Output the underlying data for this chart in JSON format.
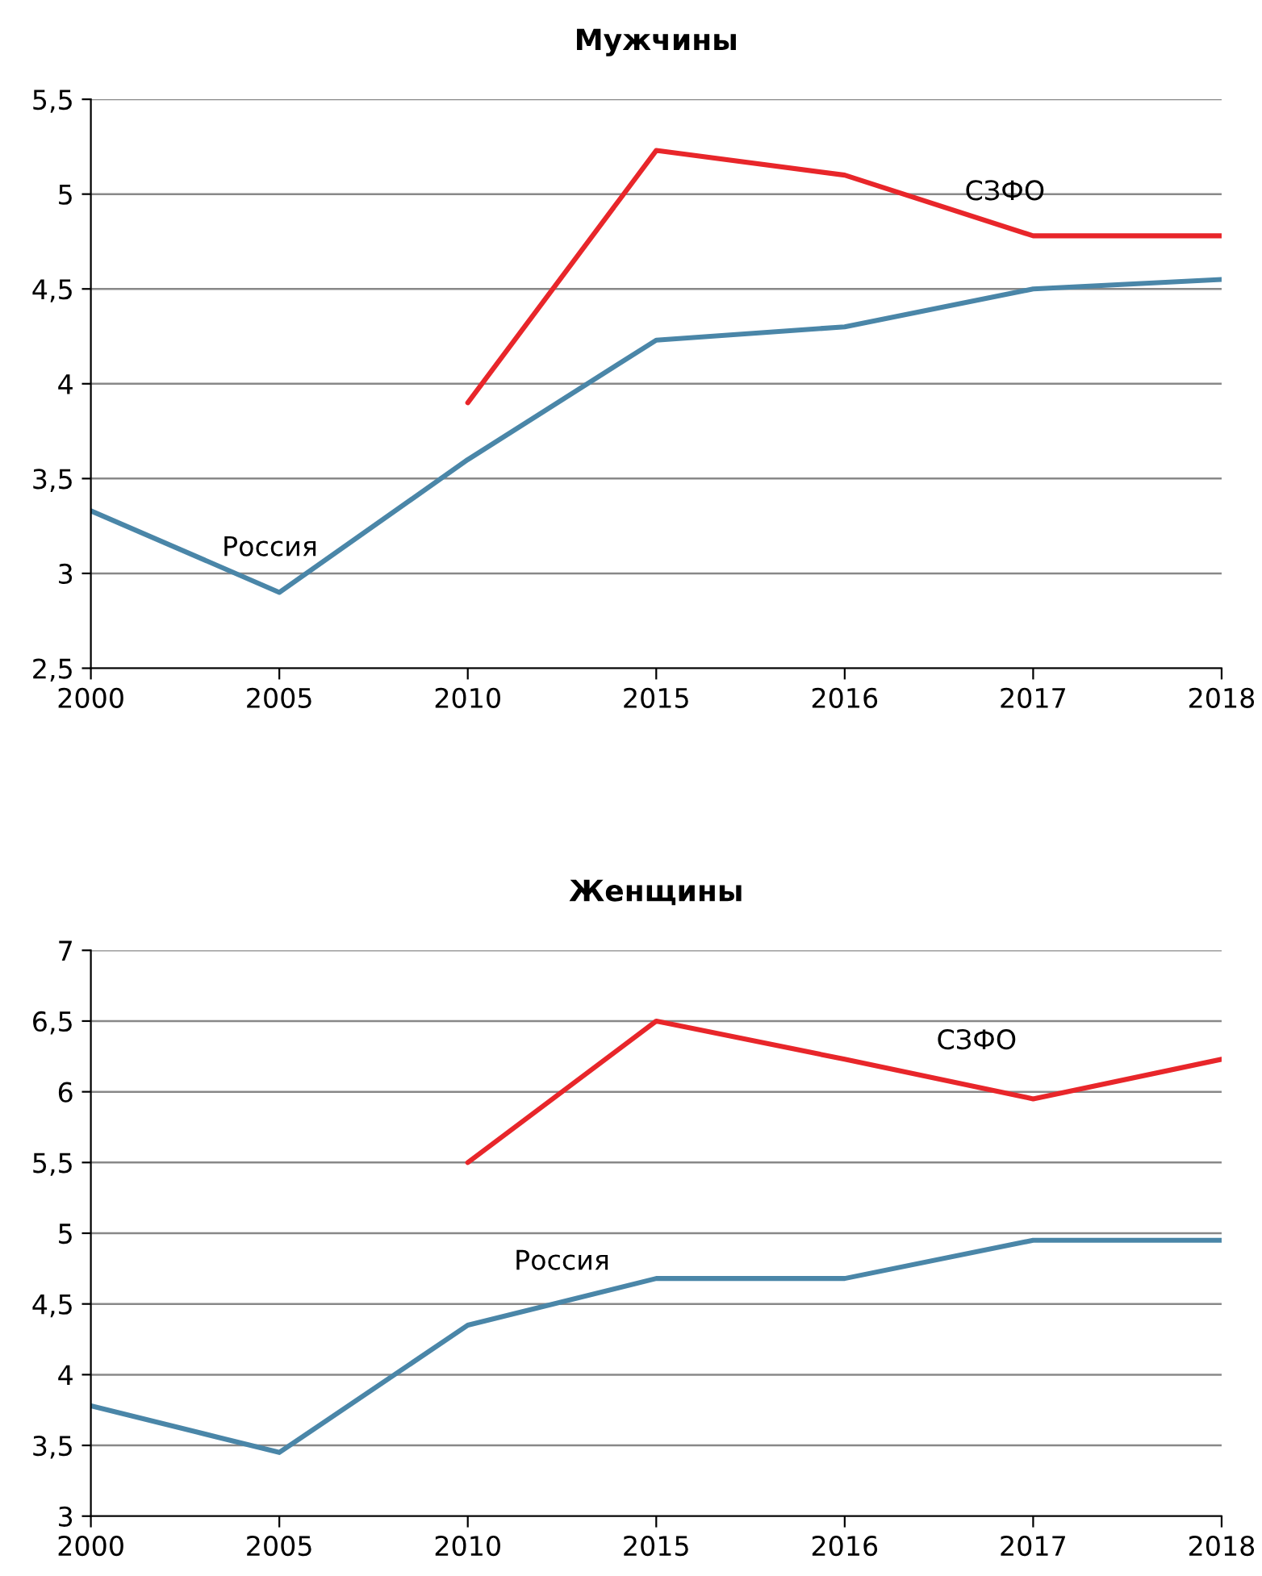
{
  "chart_data": [
    {
      "type": "line",
      "title": "Мужчины",
      "categories": [
        "2000",
        "2005",
        "2010",
        "2015",
        "2016",
        "2017",
        "2018"
      ],
      "series": [
        {
          "name": "Россия",
          "color": "#4a86a8",
          "values": [
            3.33,
            2.9,
            3.6,
            4.23,
            4.3,
            4.5,
            4.55
          ]
        },
        {
          "name": "СЗФО",
          "color": "#e8262a",
          "values": [
            null,
            null,
            3.9,
            5.23,
            5.1,
            4.78,
            4.78
          ]
        }
      ],
      "ylim": [
        2.5,
        5.5
      ],
      "yticks": [
        {
          "value": 2.5,
          "label": "2,5"
        },
        3,
        {
          "value": 3.5,
          "label": "3,5"
        },
        4,
        {
          "value": 4.5,
          "label": "4,5"
        },
        5,
        {
          "value": 5.5,
          "label": "5,5"
        }
      ],
      "grid": "y",
      "legend": false
    },
    {
      "type": "line",
      "title": "Женщины",
      "categories": [
        "2000",
        "2005",
        "2010",
        "2015",
        "2016",
        "2017",
        "2018"
      ],
      "series": [
        {
          "name": "Россия",
          "color": "#4a86a8",
          "values": [
            3.78,
            3.45,
            4.35,
            4.68,
            4.68,
            4.95,
            4.95
          ]
        },
        {
          "name": "СЗФО",
          "color": "#e8262a",
          "values": [
            null,
            null,
            5.5,
            6.5,
            6.23,
            5.95,
            6.23
          ]
        }
      ],
      "ylim": [
        3,
        7
      ],
      "yticks": [
        3,
        {
          "value": 3.5,
          "label": "3,5"
        },
        4,
        {
          "value": 4.5,
          "label": "4,5"
        },
        5,
        {
          "value": 5.5,
          "label": "5,5"
        },
        6,
        {
          "value": 6.5,
          "label": "6,5"
        },
        7
      ],
      "grid": "y",
      "legend": false
    }
  ]
}
